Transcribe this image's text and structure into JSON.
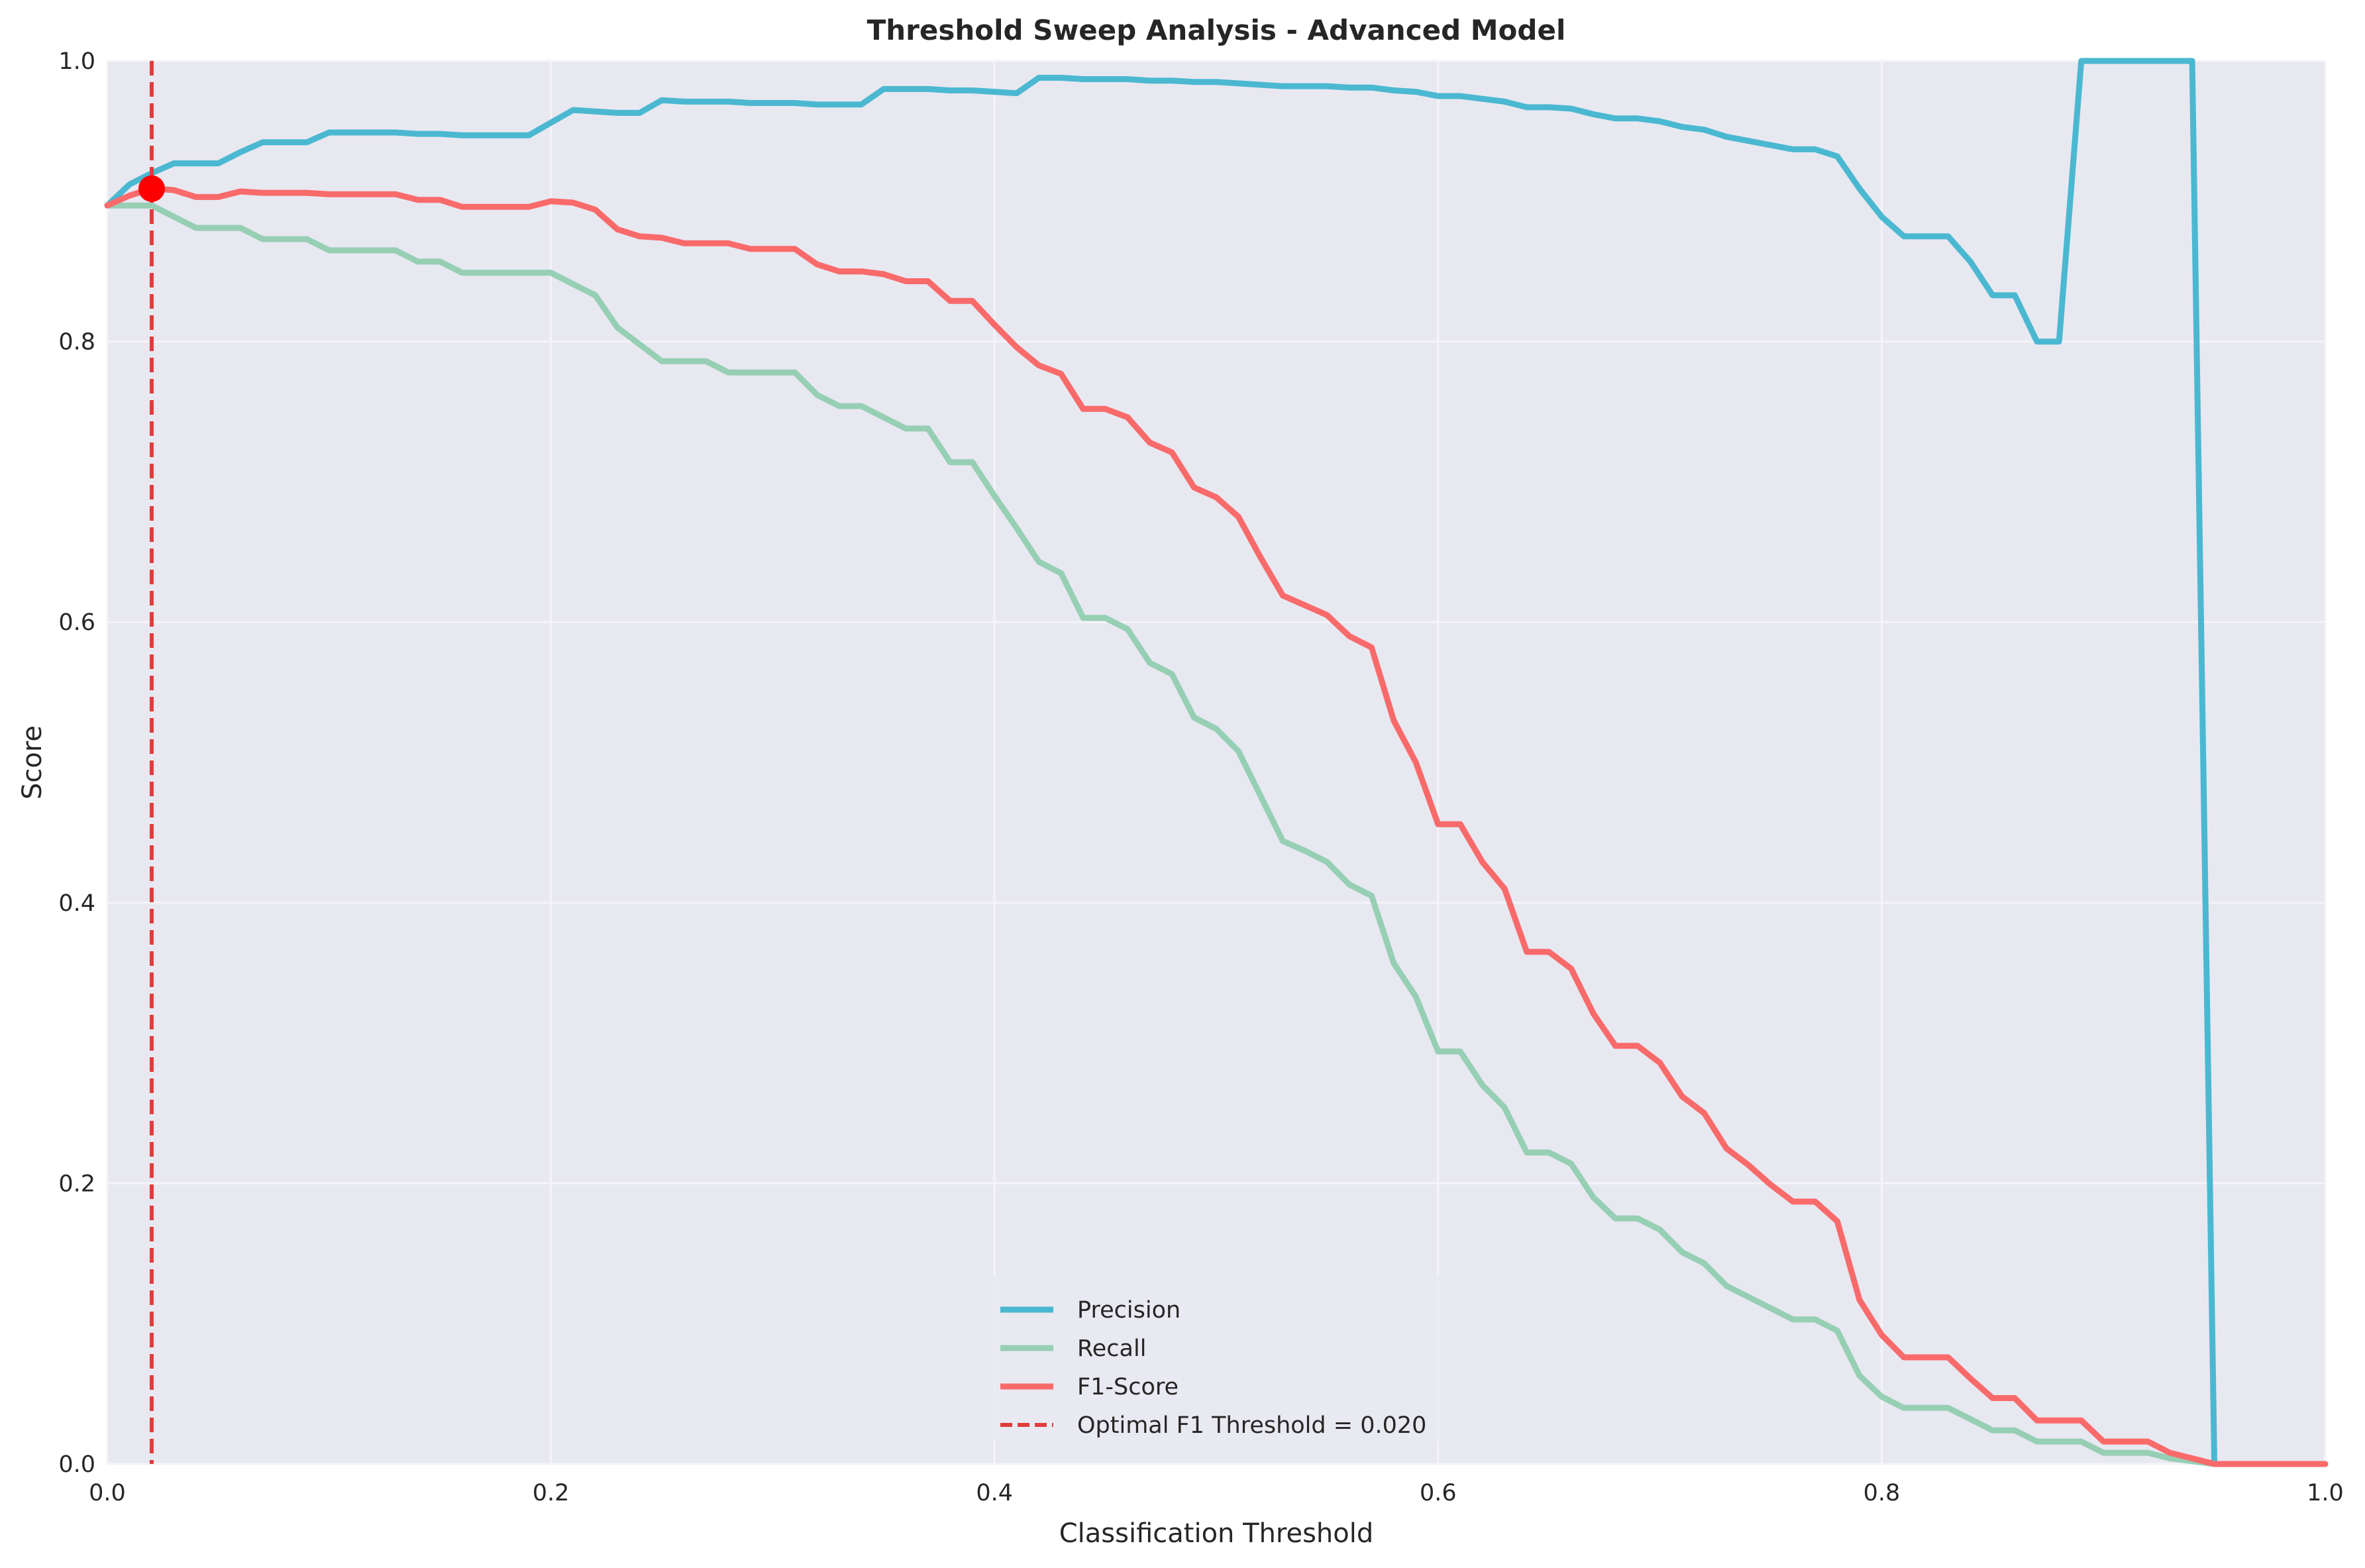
{
  "chart_data": {
    "type": "line",
    "title": "Threshold Sweep Analysis - Advanced Model",
    "xlabel": "Classification Threshold",
    "ylabel": "Score",
    "xlim": [
      0,
      1
    ],
    "ylim": [
      0,
      1
    ],
    "x_ticks": [
      "0.0",
      "0.2",
      "0.4",
      "0.6",
      "0.8",
      "1.0"
    ],
    "y_ticks": [
      "0.0",
      "0.2",
      "0.4",
      "0.6",
      "0.8",
      "1.0"
    ],
    "grid": true,
    "legend_position": "bottom-center",
    "x": [
      0.0,
      0.01,
      0.02,
      0.03,
      0.04,
      0.05,
      0.06,
      0.07,
      0.08,
      0.09,
      0.1,
      0.11,
      0.12,
      0.13,
      0.14,
      0.15,
      0.16,
      0.17,
      0.18,
      0.19,
      0.2,
      0.21,
      0.22,
      0.23,
      0.24,
      0.25,
      0.26,
      0.27,
      0.28,
      0.29,
      0.3,
      0.31,
      0.32,
      0.33,
      0.34,
      0.35,
      0.36,
      0.37,
      0.38,
      0.39,
      0.4,
      0.41,
      0.42,
      0.43,
      0.44,
      0.45,
      0.46,
      0.47,
      0.48,
      0.49,
      0.5,
      0.51,
      0.52,
      0.53,
      0.54,
      0.55,
      0.56,
      0.57,
      0.58,
      0.59,
      0.6,
      0.61,
      0.62,
      0.63,
      0.64,
      0.65,
      0.66,
      0.67,
      0.68,
      0.69,
      0.7,
      0.71,
      0.72,
      0.73,
      0.74,
      0.75,
      0.76,
      0.77,
      0.78,
      0.79,
      0.8,
      0.81,
      0.82,
      0.83,
      0.84,
      0.85,
      0.86,
      0.87,
      0.88,
      0.89,
      0.9,
      0.91,
      0.92,
      0.93,
      0.94,
      0.95,
      0.96,
      0.97,
      0.98,
      0.99,
      1.0
    ],
    "series": [
      {
        "name": "Precision",
        "color": "#4bb8d1",
        "values": [
          0.897,
          0.912,
          0.92,
          0.927,
          0.927,
          0.927,
          0.935,
          0.942,
          0.942,
          0.942,
          0.949,
          0.949,
          0.949,
          0.949,
          0.948,
          0.948,
          0.947,
          0.947,
          0.947,
          0.947,
          0.956,
          0.965,
          0.964,
          0.963,
          0.963,
          0.972,
          0.971,
          0.971,
          0.971,
          0.97,
          0.97,
          0.97,
          0.969,
          0.969,
          0.969,
          0.98,
          0.98,
          0.98,
          0.979,
          0.979,
          0.978,
          0.977,
          0.988,
          0.988,
          0.987,
          0.987,
          0.987,
          0.986,
          0.986,
          0.985,
          0.985,
          0.984,
          0.983,
          0.982,
          0.982,
          0.982,
          0.981,
          0.981,
          0.979,
          0.978,
          0.975,
          0.975,
          0.973,
          0.971,
          0.967,
          0.967,
          0.966,
          0.962,
          0.959,
          0.959,
          0.957,
          0.953,
          0.951,
          0.946,
          0.943,
          0.94,
          0.937,
          0.937,
          0.932,
          0.909,
          0.889,
          0.875,
          0.875,
          0.875,
          0.857,
          0.833,
          0.833,
          0.8,
          0.8,
          1.0,
          1.0,
          1.0,
          1.0,
          1.0,
          1.0,
          0.0,
          0.0,
          0.0,
          0.0,
          0.0,
          0.0
        ]
      },
      {
        "name": "Recall",
        "color": "#96cfb4",
        "values": [
          0.897,
          0.897,
          0.897,
          0.889,
          0.881,
          0.881,
          0.881,
          0.873,
          0.873,
          0.873,
          0.865,
          0.865,
          0.865,
          0.865,
          0.857,
          0.857,
          0.849,
          0.849,
          0.849,
          0.849,
          0.849,
          0.841,
          0.833,
          0.81,
          0.798,
          0.786,
          0.786,
          0.786,
          0.778,
          0.778,
          0.778,
          0.778,
          0.762,
          0.754,
          0.754,
          0.746,
          0.738,
          0.738,
          0.714,
          0.714,
          0.69,
          0.667,
          0.643,
          0.635,
          0.603,
          0.603,
          0.595,
          0.571,
          0.563,
          0.532,
          0.524,
          0.508,
          0.476,
          0.444,
          0.437,
          0.429,
          0.413,
          0.405,
          0.357,
          0.333,
          0.294,
          0.294,
          0.27,
          0.254,
          0.222,
          0.222,
          0.214,
          0.19,
          0.175,
          0.175,
          0.167,
          0.151,
          0.143,
          0.127,
          0.119,
          0.111,
          0.103,
          0.103,
          0.095,
          0.063,
          0.048,
          0.04,
          0.04,
          0.04,
          0.032,
          0.024,
          0.024,
          0.016,
          0.016,
          0.016,
          0.008,
          0.008,
          0.008,
          0.004,
          0.002,
          0.0,
          0.0,
          0.0,
          0.0,
          0.0,
          0.0
        ]
      },
      {
        "name": "F1-Score",
        "color": "#f96a6a",
        "values": [
          0.897,
          0.904,
          0.909,
          0.908,
          0.903,
          0.903,
          0.907,
          0.906,
          0.906,
          0.906,
          0.905,
          0.905,
          0.905,
          0.905,
          0.901,
          0.901,
          0.896,
          0.896,
          0.896,
          0.896,
          0.9,
          0.899,
          0.894,
          0.88,
          0.875,
          0.874,
          0.87,
          0.87,
          0.87,
          0.866,
          0.866,
          0.866,
          0.855,
          0.85,
          0.85,
          0.848,
          0.843,
          0.843,
          0.829,
          0.829,
          0.812,
          0.796,
          0.783,
          0.777,
          0.752,
          0.752,
          0.746,
          0.728,
          0.721,
          0.696,
          0.689,
          0.675,
          0.646,
          0.619,
          0.612,
          0.605,
          0.59,
          0.582,
          0.53,
          0.5,
          0.456,
          0.456,
          0.429,
          0.41,
          0.365,
          0.365,
          0.353,
          0.321,
          0.298,
          0.298,
          0.286,
          0.262,
          0.25,
          0.225,
          0.213,
          0.199,
          0.187,
          0.187,
          0.173,
          0.117,
          0.092,
          0.076,
          0.076,
          0.076,
          0.061,
          0.047,
          0.047,
          0.031,
          0.031,
          0.031,
          0.016,
          0.016,
          0.016,
          0.008,
          0.004,
          0.0,
          0.0,
          0.0,
          0.0,
          0.0,
          0.0
        ]
      }
    ],
    "optimal_threshold": {
      "label": "Optimal F1 Threshold = 0.020",
      "x": 0.02,
      "y": 0.909,
      "line_color": "#e03c3c",
      "marker_color": "#ff0000"
    }
  },
  "theme": {
    "plot_background": "#e8e8f1",
    "grid_color": "#f4f4f8",
    "text_color": "#262626"
  }
}
